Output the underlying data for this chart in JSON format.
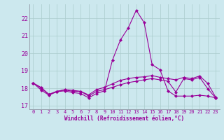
{
  "background_color": "#cce8ee",
  "line_color": "#990099",
  "grid_color": "#aacccc",
  "x": [
    0,
    1,
    2,
    3,
    4,
    5,
    6,
    7,
    8,
    9,
    10,
    11,
    12,
    13,
    14,
    15,
    16,
    17,
    18,
    19,
    20,
    21,
    22,
    23
  ],
  "line1": [
    18.3,
    17.9,
    17.6,
    17.8,
    17.85,
    17.75,
    17.7,
    17.45,
    17.7,
    17.85,
    19.6,
    20.75,
    21.45,
    22.45,
    21.75,
    19.35,
    19.05,
    17.85,
    17.55,
    17.55,
    17.55,
    17.6,
    17.55,
    17.45
  ],
  "line2": [
    18.3,
    18.0,
    17.65,
    17.82,
    17.92,
    17.88,
    17.82,
    17.62,
    17.92,
    18.05,
    18.25,
    18.45,
    18.55,
    18.62,
    18.65,
    18.72,
    18.62,
    18.55,
    18.48,
    18.62,
    18.55,
    18.7,
    18.28,
    17.5
  ],
  "line3": [
    18.3,
    18.05,
    17.65,
    17.82,
    17.9,
    17.82,
    17.82,
    17.55,
    17.82,
    17.92,
    18.05,
    18.2,
    18.32,
    18.4,
    18.48,
    18.55,
    18.48,
    18.4,
    17.78,
    18.55,
    18.48,
    18.62,
    17.98,
    17.45
  ],
  "xlabel": "Windchill (Refroidissement éolien,°C)",
  "ylim": [
    16.8,
    22.8
  ],
  "yticks": [
    17,
    18,
    19,
    20,
    21,
    22
  ],
  "xticks": [
    0,
    1,
    2,
    3,
    4,
    5,
    6,
    7,
    8,
    9,
    10,
    11,
    12,
    13,
    14,
    15,
    16,
    17,
    18,
    19,
    20,
    21,
    22,
    23
  ],
  "figsize": [
    3.2,
    2.0
  ],
  "dpi": 100
}
